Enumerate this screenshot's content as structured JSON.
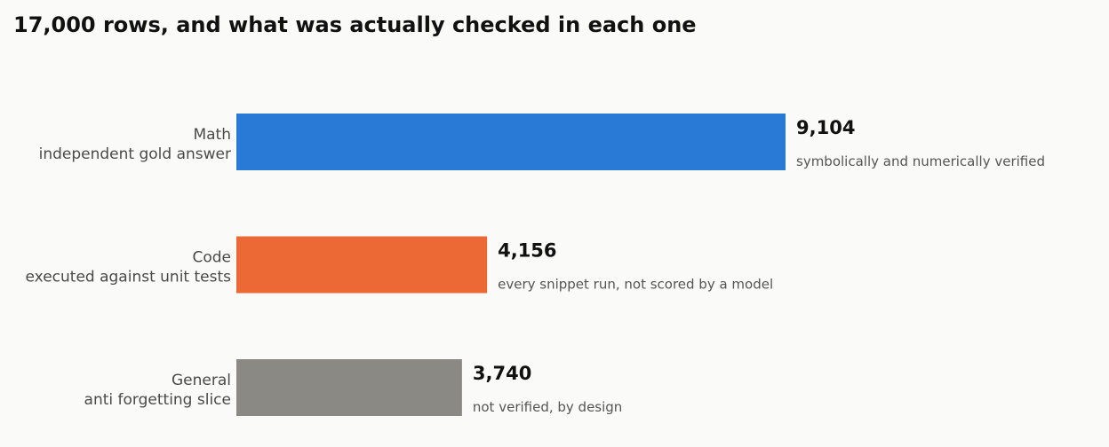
{
  "chart_data": {
    "type": "bar",
    "orientation": "horizontal",
    "title": "17,000 rows, and what was actually checked in each one",
    "categories": [
      "Math",
      "Code",
      "General"
    ],
    "subcategories": [
      "independent gold answer",
      "executed against unit tests",
      "anti forgetting slice"
    ],
    "values": [
      9104,
      4156,
      3740
    ],
    "value_labels": [
      "9,104",
      "4,156",
      "3,740"
    ],
    "annotations": [
      "symbolically and numerically verified",
      "every snippet run, not scored by a model",
      "not verified, by design"
    ],
    "colors": [
      "#2979d6",
      "#ec6936",
      "#8a8983"
    ],
    "xlim": [
      0,
      9104
    ],
    "grid": false,
    "legend": "none"
  }
}
